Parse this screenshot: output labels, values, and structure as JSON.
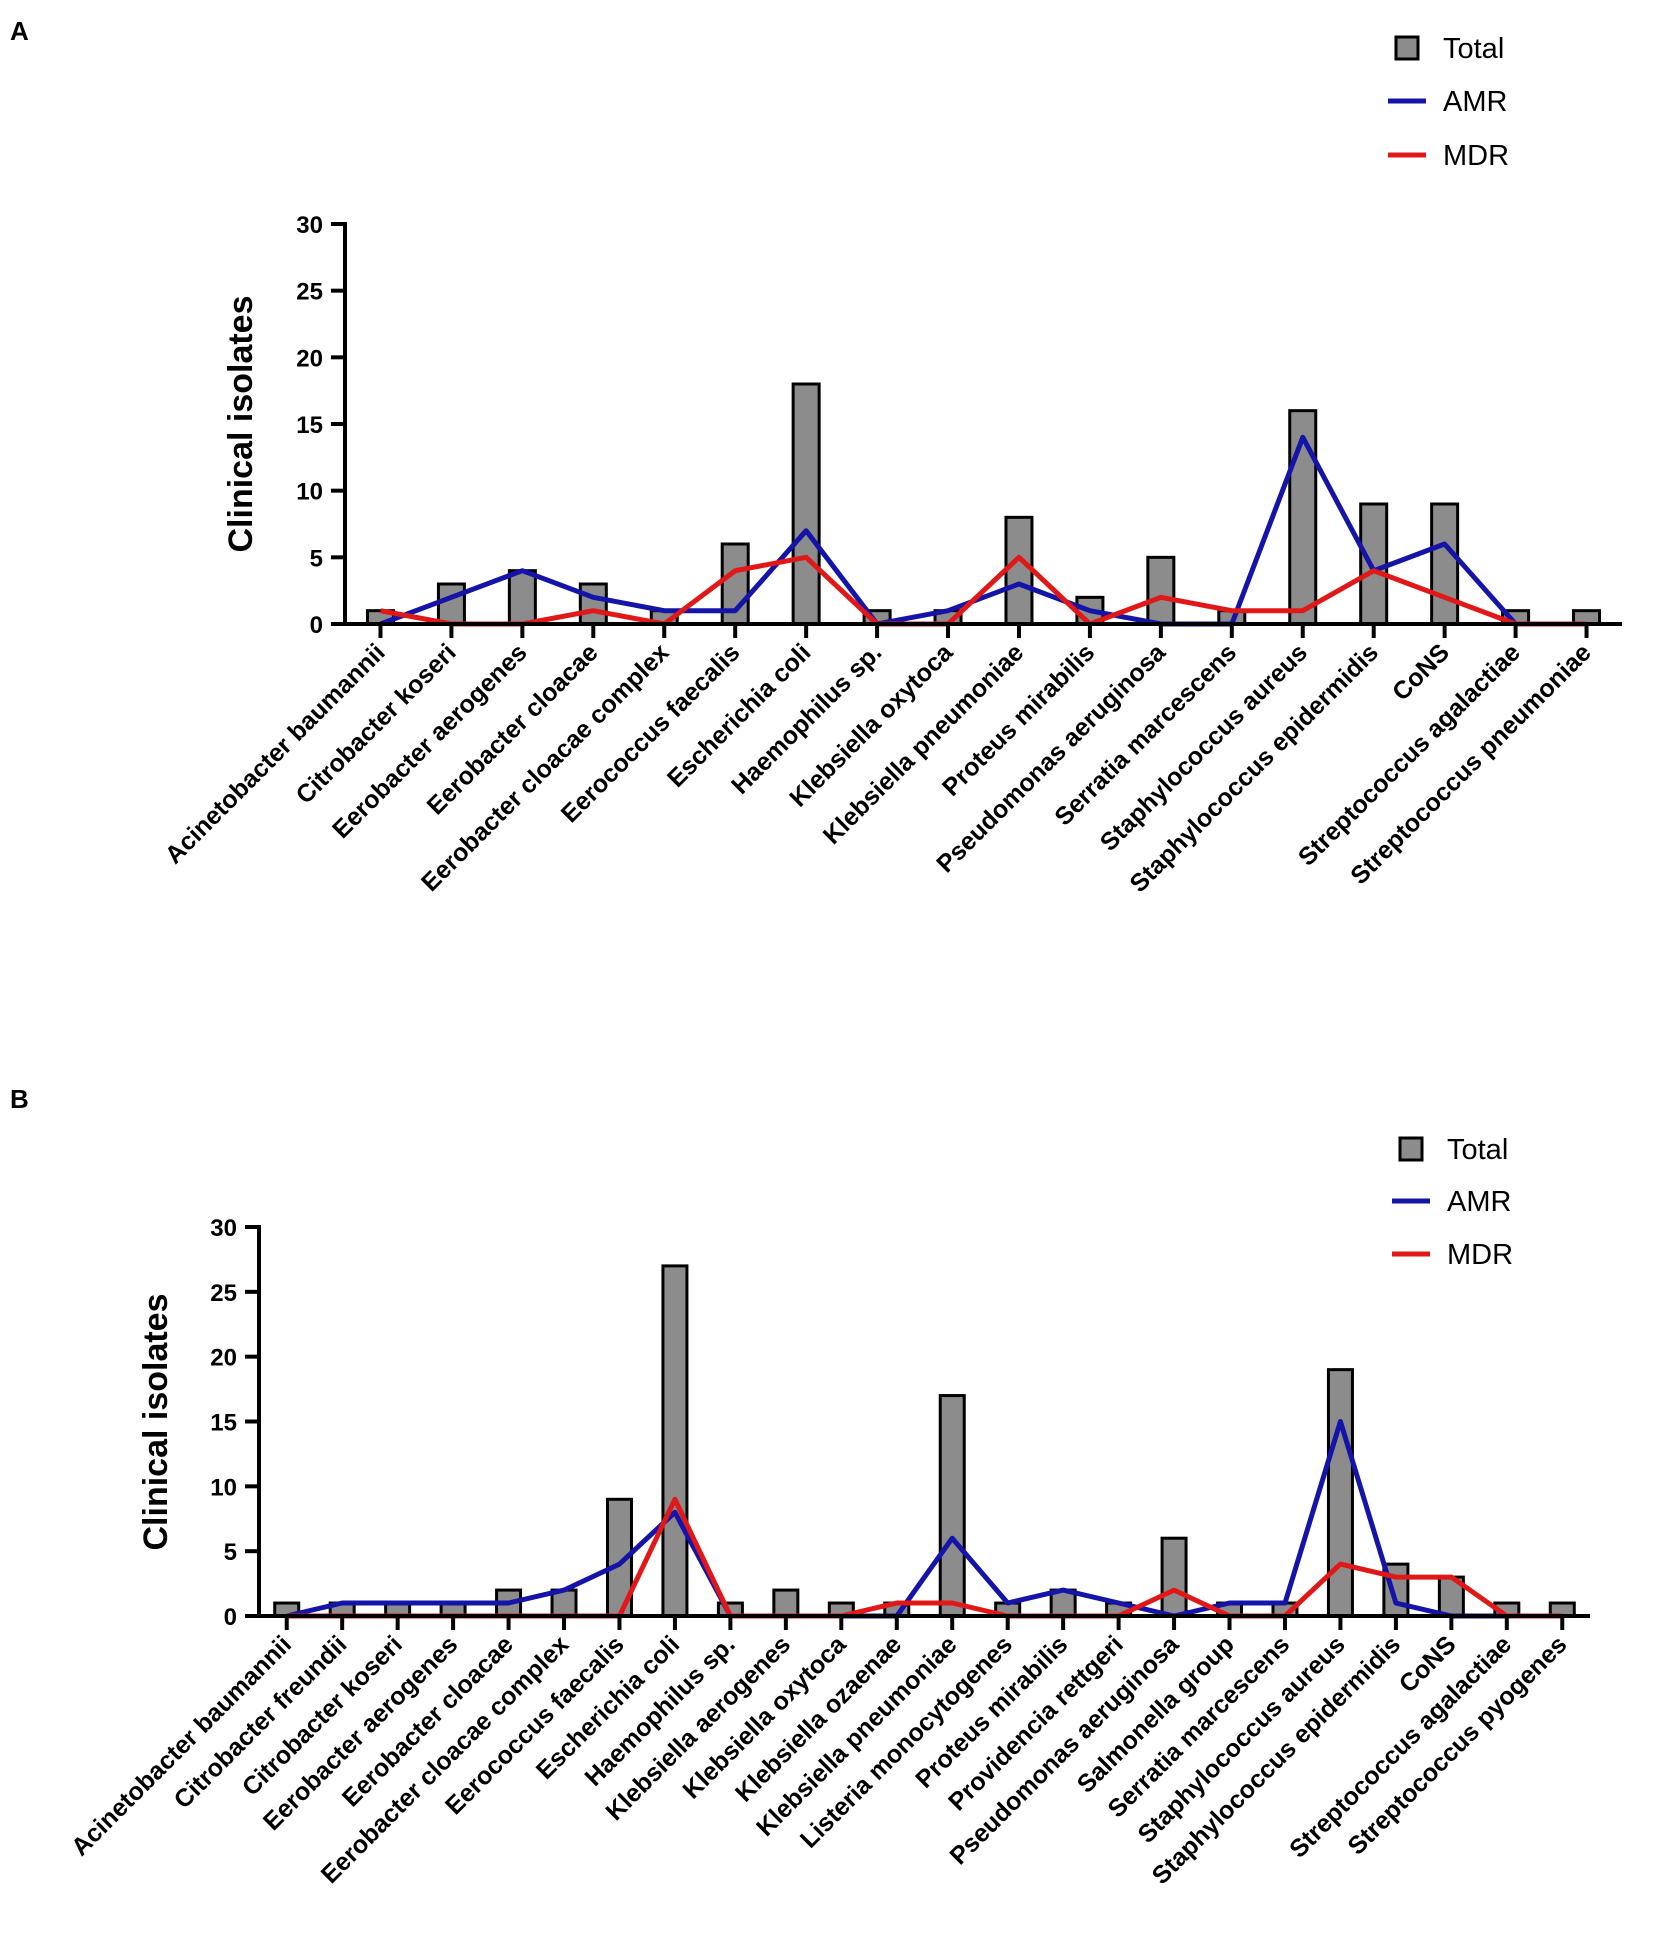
{
  "colors": {
    "total": "#8c8c8c",
    "amr": "#1414a8",
    "mdr": "#e01818"
  },
  "chart_data": [
    {
      "panel": "A",
      "type": "bar",
      "ylabel": "Clinical isolates",
      "xlabel": "",
      "ylim": [
        0,
        30
      ],
      "yticks": [
        "0",
        "5",
        "10",
        "15",
        "20",
        "25",
        "30"
      ],
      "legend": {
        "total": "Total",
        "amr": "AMR",
        "mdr": "MDR"
      },
      "categories": [
        "Acinetobacter baumannii",
        "Citrobacter koseri",
        "Eerobacter aerogenes",
        "Eerobacter cloacae",
        "Eerobacter cloacae complex",
        "Eerococcus faecalis",
        "Escherichia coli",
        "Haemophilus sp.",
        "Klebsiella oxytoca",
        "Klebsiella pneumoniae",
        "Proteus mirabilis",
        "Pseudomonas aeruginosa",
        "Serratia marcescens",
        "Staphylococcus aureus",
        "Staphylococcus epidermidis",
        "CoNS",
        "Streptococcus agalactiae",
        "Streptococcus pneumoniae"
      ],
      "series": [
        {
          "name": "Total",
          "kind": "bar",
          "values": [
            1,
            3,
            4,
            3,
            1,
            6,
            18,
            1,
            1,
            8,
            2,
            5,
            1,
            16,
            9,
            9,
            1,
            1
          ]
        },
        {
          "name": "AMR",
          "kind": "line",
          "values": [
            0,
            2,
            4,
            2,
            1,
            1,
            7,
            0,
            1,
            3,
            1,
            0,
            0,
            14,
            4,
            6,
            0,
            0
          ]
        },
        {
          "name": "MDR",
          "kind": "line",
          "values": [
            1,
            0,
            0,
            1,
            0,
            4,
            5,
            0,
            0,
            5,
            0,
            2,
            1,
            1,
            4,
            2,
            0,
            0
          ]
        }
      ]
    },
    {
      "panel": "B",
      "type": "bar",
      "ylabel": "Clinical isolates",
      "xlabel": "",
      "ylim": [
        0,
        30
      ],
      "yticks": [
        "0",
        "5",
        "10",
        "15",
        "20",
        "25",
        "30"
      ],
      "legend": {
        "total": "Total",
        "amr": "AMR",
        "mdr": "MDR"
      },
      "categories": [
        "Acinetobacter baumannii",
        "Citrobacter freundii",
        "Citrobacter koseri",
        "Eerobacter aerogenes",
        "Eerobacter cloacae",
        "Eerobacter cloacae complex",
        "Eerococcus faecalis",
        "Escherichia coli",
        "Haemophilus sp.",
        "Klebsiella aerogenes",
        "Klebsiella oxytoca",
        "Klebsiella ozaenae",
        "Klebsiella pneumoniae",
        "Listeria monocytogenes",
        "Proteus mirabilis",
        "Providencia rettgeri",
        "Pseudomonas aeruginosa",
        "Salmonella group",
        "Serratia marcescens",
        "Staphylococcus aureus",
        "Staphylococcus epidermidis",
        "CoNS",
        "Streptococcus agalactiae",
        "Streptococcus pyogenes"
      ],
      "series": [
        {
          "name": "Total",
          "kind": "bar",
          "values": [
            1,
            1,
            1,
            1,
            2,
            2,
            9,
            27,
            1,
            2,
            1,
            1,
            17,
            1,
            2,
            1,
            6,
            1,
            1,
            19,
            4,
            3,
            1,
            1
          ]
        },
        {
          "name": "AMR",
          "kind": "line",
          "values": [
            0,
            1,
            1,
            1,
            1,
            2,
            4,
            8,
            0,
            0,
            0,
            0,
            6,
            1,
            2,
            1,
            0,
            1,
            1,
            15,
            1,
            0,
            0,
            0
          ]
        },
        {
          "name": "MDR",
          "kind": "line",
          "values": [
            0,
            0,
            0,
            0,
            0,
            0,
            0,
            9,
            0,
            0,
            0,
            1,
            1,
            0,
            0,
            0,
            2,
            0,
            0,
            4,
            3,
            3,
            0,
            0
          ]
        }
      ]
    }
  ]
}
